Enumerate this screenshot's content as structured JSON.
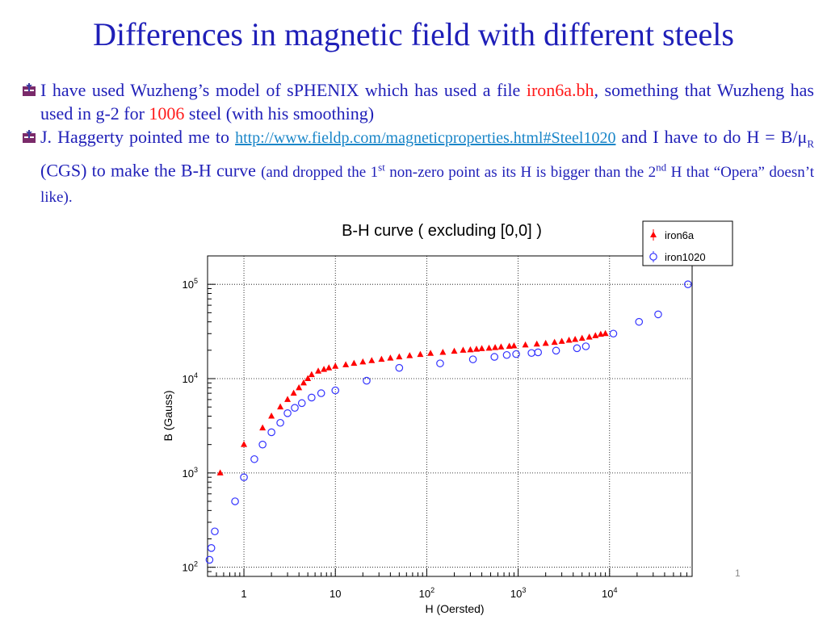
{
  "slide": {
    "title": "Differences in magnetic field with different steels",
    "page_number": "1"
  },
  "bullets": {
    "b1": {
      "t1": "I have used Wuzheng’s model of sPHENIX which has used a file ",
      "file": "iron6a.bh",
      "t2": ", something that Wuzheng has used in g-2 for ",
      "steel": "1006",
      "t3": " steel (with his smoothing)"
    },
    "b2": {
      "t1": "J. Haggerty pointed me to ",
      "link": "http://www.fieldp.com/magneticproperties.html#Steel1020",
      "t2": " and I have to do H = B/μ",
      "sub": "R",
      "t3": " (CGS) to make the B-H curve ",
      "t4": "(and dropped the 1",
      "sup1": "st",
      "t5": " non-zero point as its H is bigger than the 2",
      "sup2": "nd",
      "t6": " H that “Opera” doesn’t like)."
    }
  },
  "colors": {
    "title": "#1f1fb8",
    "iron6a": "#ff0000",
    "iron1020": "#3333ff"
  },
  "chart_data": {
    "type": "scatter",
    "title": "B-H curve ( excluding [0,0] )",
    "xlabel": "H (Oersted)",
    "ylabel": "B (Gauss)",
    "x_scale": "log",
    "y_scale": "log",
    "xlim": [
      0.4,
      80000
    ],
    "ylim": [
      80,
      200000
    ],
    "grid": true,
    "legend_position": "top-right",
    "x_ticks": [
      {
        "value": 1,
        "label": "1"
      },
      {
        "value": 10,
        "label": "10"
      },
      {
        "value": 100,
        "base": "10",
        "exp": "2"
      },
      {
        "value": 1000,
        "base": "10",
        "exp": "3"
      },
      {
        "value": 10000,
        "base": "10",
        "exp": "4"
      }
    ],
    "y_ticks": [
      {
        "value": 100,
        "base": "10",
        "exp": "2"
      },
      {
        "value": 1000,
        "base": "10",
        "exp": "3"
      },
      {
        "value": 10000,
        "base": "10",
        "exp": "4"
      },
      {
        "value": 100000,
        "base": "10",
        "exp": "5"
      }
    ],
    "series": [
      {
        "name": "iron6a",
        "marker": "triangle",
        "color": "#ff0000",
        "points": [
          [
            0.55,
            1000
          ],
          [
            1.0,
            2000
          ],
          [
            1.6,
            3000
          ],
          [
            2.0,
            4000
          ],
          [
            2.5,
            5000
          ],
          [
            3.0,
            6000
          ],
          [
            3.5,
            7000
          ],
          [
            4.0,
            8000
          ],
          [
            4.5,
            9000
          ],
          [
            5.0,
            10000
          ],
          [
            5.5,
            11000
          ],
          [
            6.5,
            12000
          ],
          [
            7.5,
            12500
          ],
          [
            8.5,
            13000
          ],
          [
            10,
            13500
          ],
          [
            13,
            14000
          ],
          [
            16,
            14500
          ],
          [
            20,
            15000
          ],
          [
            25,
            15500
          ],
          [
            32,
            16000
          ],
          [
            40,
            16500
          ],
          [
            50,
            17000
          ],
          [
            65,
            17500
          ],
          [
            85,
            18000
          ],
          [
            110,
            18500
          ],
          [
            150,
            19000
          ],
          [
            200,
            19500
          ],
          [
            250,
            20000
          ],
          [
            300,
            20200
          ],
          [
            350,
            20500
          ],
          [
            400,
            20800
          ],
          [
            480,
            21000
          ],
          [
            560,
            21300
          ],
          [
            650,
            21600
          ],
          [
            800,
            22000
          ],
          [
            900,
            22200
          ],
          [
            1200,
            22700
          ],
          [
            1600,
            23200
          ],
          [
            2000,
            23600
          ],
          [
            2500,
            24200
          ],
          [
            3000,
            24800
          ],
          [
            3600,
            25500
          ],
          [
            4200,
            26000
          ],
          [
            5000,
            26700
          ],
          [
            6000,
            27500
          ],
          [
            7000,
            28500
          ],
          [
            8000,
            29500
          ],
          [
            9000,
            30000
          ]
        ]
      },
      {
        "name": "iron1020",
        "marker": "circle",
        "color": "#3333ff",
        "points": [
          [
            0.42,
            120
          ],
          [
            0.44,
            160
          ],
          [
            0.48,
            240
          ],
          [
            0.8,
            500
          ],
          [
            1.0,
            900
          ],
          [
            1.3,
            1400
          ],
          [
            1.6,
            2000
          ],
          [
            2.0,
            2700
          ],
          [
            2.5,
            3400
          ],
          [
            3.0,
            4300
          ],
          [
            3.6,
            4900
          ],
          [
            4.3,
            5500
          ],
          [
            5.5,
            6300
          ],
          [
            7.0,
            7000
          ],
          [
            10,
            7500
          ],
          [
            22,
            9500
          ],
          [
            50,
            13000
          ],
          [
            140,
            14500
          ],
          [
            320,
            16000
          ],
          [
            550,
            17000
          ],
          [
            750,
            17800
          ],
          [
            950,
            18200
          ],
          [
            1400,
            18700
          ],
          [
            1650,
            19000
          ],
          [
            2600,
            19800
          ],
          [
            4400,
            21000
          ],
          [
            5500,
            22000
          ],
          [
            11000,
            30000
          ],
          [
            21000,
            40000
          ],
          [
            34000,
            48000
          ],
          [
            72000,
            100000
          ]
        ]
      }
    ]
  }
}
